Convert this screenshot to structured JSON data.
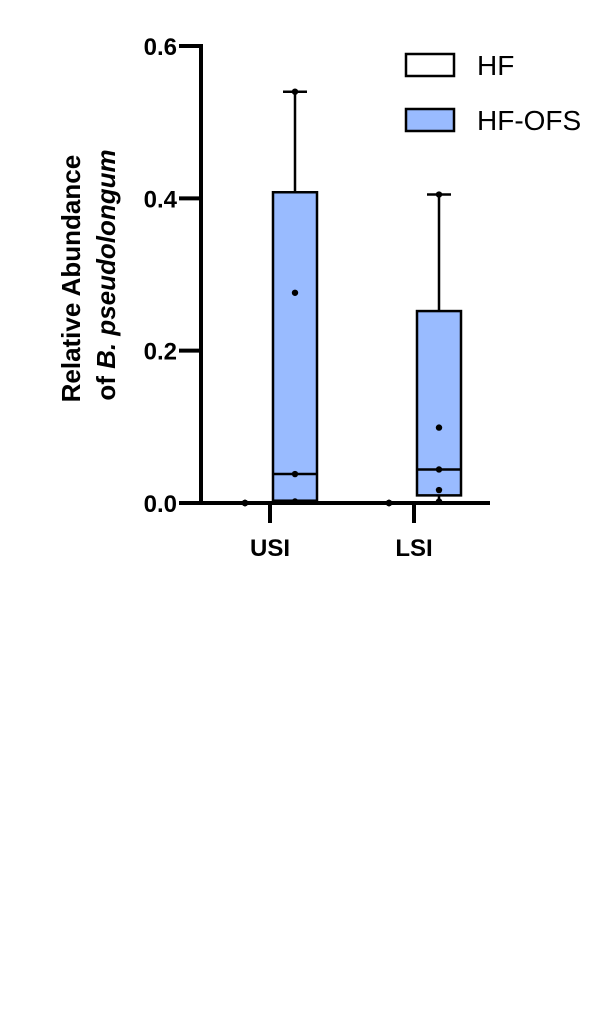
{
  "chart_data": {
    "type": "box",
    "title": "",
    "ylabel": {
      "line1": "Relative Abundance",
      "line2_prefix": "of ",
      "line2_italic": "B. pseudolongum"
    },
    "xlabel": "",
    "ylim": [
      0,
      0.6
    ],
    "yticks": [
      {
        "value": 0.0,
        "label": "0.0"
      },
      {
        "value": 0.2,
        "label": "0.2"
      },
      {
        "value": 0.4,
        "label": "0.4"
      },
      {
        "value": 0.6,
        "label": "0.6"
      }
    ],
    "categories": [
      "USI",
      "LSI"
    ],
    "legend_position": "top-right",
    "series": [
      {
        "name": "HF",
        "color": "#ffffff",
        "groups": [
          {
            "category": "USI",
            "min": 0,
            "q1": 0,
            "median": 0,
            "q3": 0,
            "max": 0,
            "points": [
              0,
              0,
              0,
              0
            ]
          },
          {
            "category": "LSI",
            "min": 0,
            "q1": 0,
            "median": 0,
            "q3": 0,
            "max": 0,
            "points": [
              0,
              0,
              0,
              0
            ]
          }
        ]
      },
      {
        "name": "HF-OFS",
        "color": "#99bbff",
        "groups": [
          {
            "category": "USI",
            "min": 0.0,
            "q1": 0.003,
            "median": 0.038,
            "q3": 0.408,
            "max": 0.54,
            "points": [
              0.54,
              0.276,
              0.038,
              0.002
            ]
          },
          {
            "category": "LSI",
            "min": 0.0,
            "q1": 0.01,
            "median": 0.044,
            "q3": 0.252,
            "max": 0.405,
            "points": [
              0.405,
              0.099,
              0.044,
              0.017,
              0.002
            ]
          }
        ]
      }
    ]
  }
}
